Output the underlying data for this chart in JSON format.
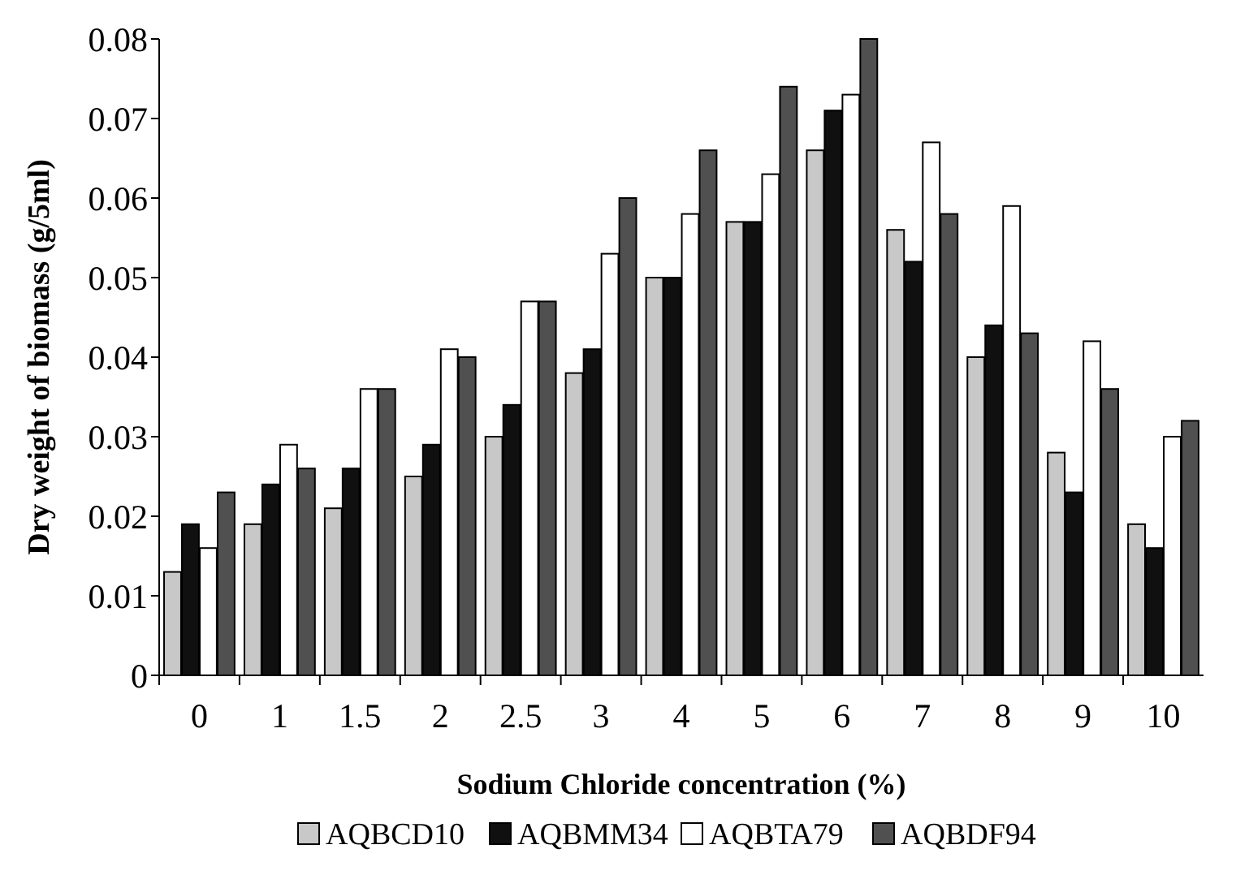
{
  "chart_data": {
    "type": "bar",
    "xlabel": "Sodium Chloride concentration (%)",
    "ylabel": "Dry weight of biomass (g/5ml)",
    "categories": [
      "0",
      "1",
      "1.5",
      "2",
      "2.5",
      "3",
      "4",
      "5",
      "6",
      "7",
      "8",
      "9",
      "10"
    ],
    "series": [
      {
        "name": "AQBCD10",
        "color": "#c8c8c8",
        "values": [
          0.013,
          0.019,
          0.021,
          0.025,
          0.03,
          0.038,
          0.05,
          0.057,
          0.066,
          0.056,
          0.04,
          0.028,
          0.019
        ]
      },
      {
        "name": "AQBMM34",
        "color": "#101010",
        "values": [
          0.019,
          0.024,
          0.026,
          0.029,
          0.034,
          0.041,
          0.05,
          0.057,
          0.071,
          0.052,
          0.044,
          0.023,
          0.016
        ]
      },
      {
        "name": "AQBTA79",
        "color": "#ffffff",
        "values": [
          0.016,
          0.029,
          0.036,
          0.041,
          0.047,
          0.053,
          0.058,
          0.063,
          0.073,
          0.067,
          0.059,
          0.042,
          0.03
        ]
      },
      {
        "name": "AQBDF94",
        "color": "#505050",
        "values": [
          0.023,
          0.026,
          0.036,
          0.04,
          0.047,
          0.06,
          0.066,
          0.074,
          0.08,
          0.058,
          0.043,
          0.036,
          0.032
        ]
      }
    ],
    "ylim": [
      0,
      0.08
    ],
    "yticks": [
      0,
      0.01,
      0.02,
      0.03,
      0.04,
      0.05,
      0.06,
      0.07,
      0.08
    ],
    "grid": false,
    "legend": "bottom"
  }
}
